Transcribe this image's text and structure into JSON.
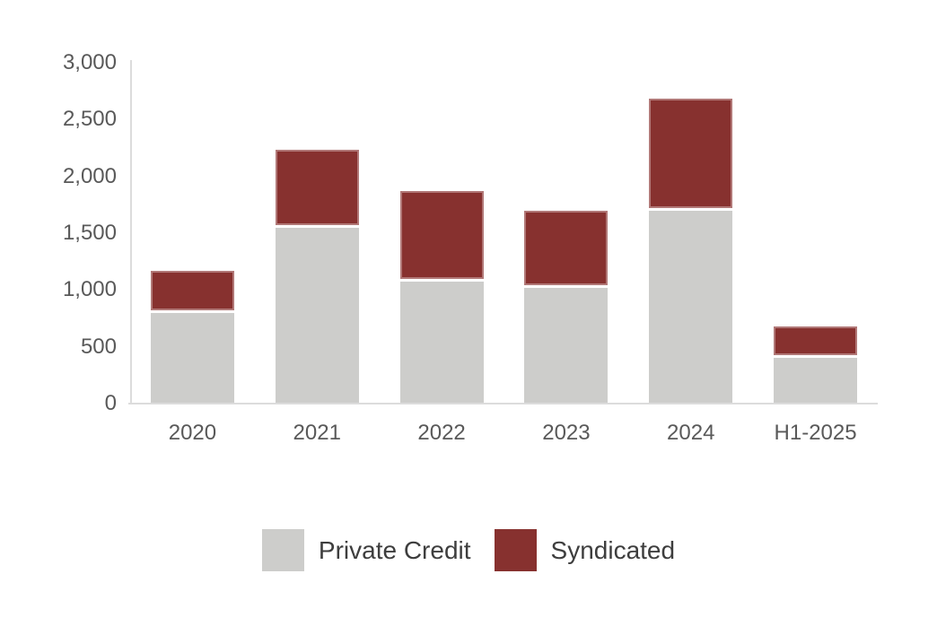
{
  "chart_data": {
    "type": "bar",
    "stacked": true,
    "title": "",
    "xlabel": "",
    "ylabel": "",
    "categories": [
      "2020",
      "2021",
      "2022",
      "2023",
      "2024",
      "H1-2025"
    ],
    "series": [
      {
        "name": "Private Credit",
        "color": "#cdcdcb",
        "values": [
          800,
          1550,
          1070,
          1020,
          1700,
          400
        ]
      },
      {
        "name": "Syndicated",
        "color": "#87312f",
        "values": [
          370,
          690,
          800,
          680,
          990,
          280
        ]
      }
    ],
    "totals": [
      1170,
      2240,
      1870,
      1700,
      2690,
      680
    ],
    "ylim": [
      0,
      3000
    ],
    "ytick_step": 500,
    "ytick_labels": [
      "0",
      "500",
      "1,000",
      "1,500",
      "2,000",
      "2,500",
      "3,000"
    ],
    "grid": false,
    "legend_position": "bottom",
    "axis_color": "#dcdcdc",
    "tick_label_color": "#595959",
    "legend_text_color": "#3e3e3e"
  }
}
